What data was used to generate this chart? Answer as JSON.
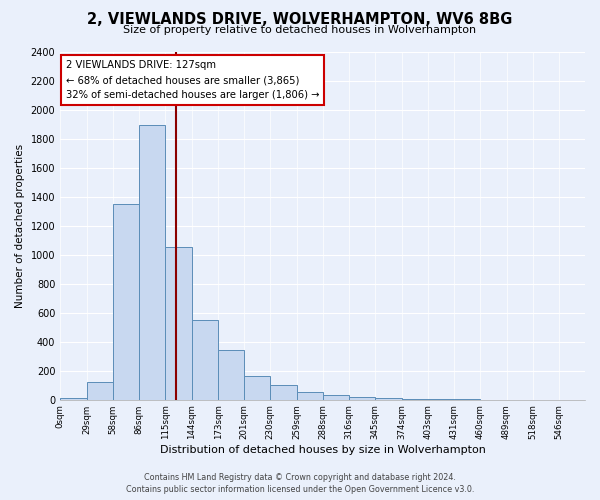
{
  "title": "2, VIEWLANDS DRIVE, WOLVERHAMPTON, WV6 8BG",
  "subtitle": "Size of property relative to detached houses in Wolverhampton",
  "xlabel": "Distribution of detached houses by size in Wolverhampton",
  "ylabel": "Number of detached properties",
  "bar_edges": [
    0,
    29,
    58,
    86,
    115,
    144,
    173,
    201,
    230,
    259,
    288,
    316,
    345,
    374,
    403,
    431,
    460,
    489,
    518,
    546,
    575
  ],
  "bar_heights": [
    15,
    125,
    1350,
    1890,
    1050,
    550,
    340,
    160,
    100,
    55,
    30,
    20,
    10,
    5,
    3,
    2,
    1,
    1,
    1,
    1
  ],
  "bar_color": "#c8d8f0",
  "bar_edge_color": "#5b8db8",
  "vline_x": 127,
  "vline_color": "#8b0000",
  "annotation_title": "2 VIEWLANDS DRIVE: 127sqm",
  "annotation_line1": "← 68% of detached houses are smaller (3,865)",
  "annotation_line2": "32% of semi-detached houses are larger (1,806) →",
  "annotation_box_color": "#ffffff",
  "annotation_box_edge": "#cc0000",
  "ylim": [
    0,
    2400
  ],
  "yticks": [
    0,
    200,
    400,
    600,
    800,
    1000,
    1200,
    1400,
    1600,
    1800,
    2000,
    2200,
    2400
  ],
  "bg_color": "#eaf0fb",
  "footer_line1": "Contains HM Land Registry data © Crown copyright and database right 2024.",
  "footer_line2": "Contains public sector information licensed under the Open Government Licence v3.0."
}
